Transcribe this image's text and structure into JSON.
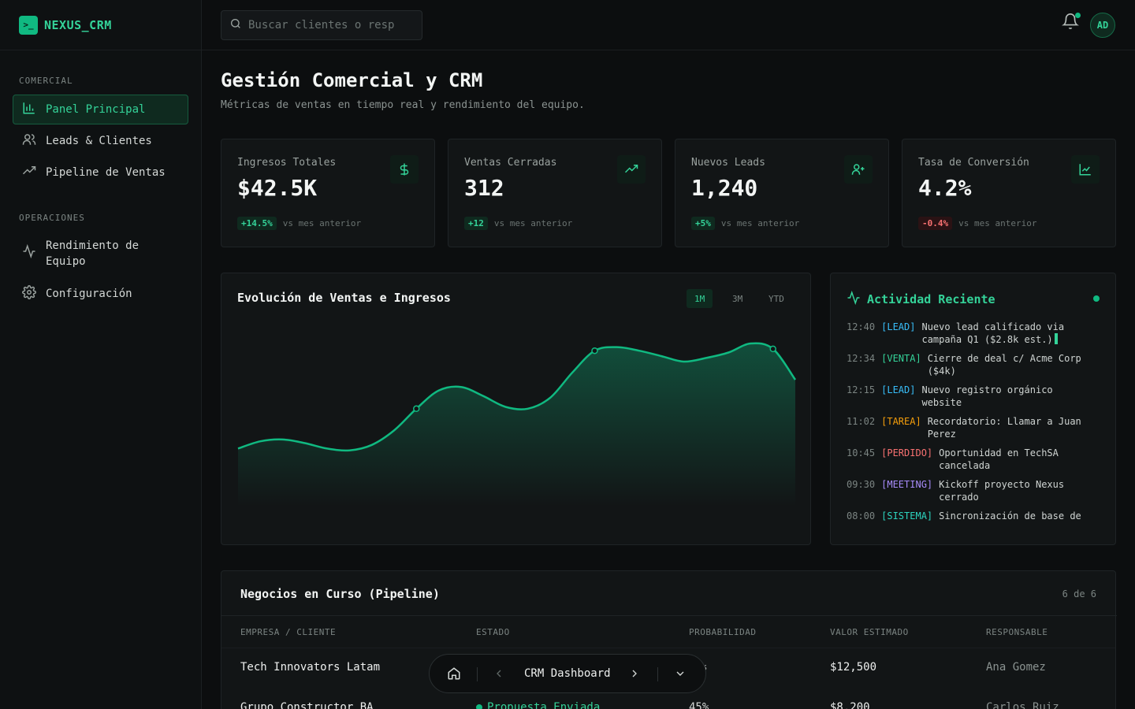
{
  "app": {
    "logo_glyph": ">_",
    "name": "NEXUS_CRM"
  },
  "sidebar": {
    "sections": [
      {
        "heading": "COMERCIAL",
        "items": [
          {
            "label": "Panel Principal",
            "icon": "bar-chart-icon",
            "active": true
          },
          {
            "label": "Leads & Clientes",
            "icon": "users-icon"
          },
          {
            "label": "Pipeline de Ventas",
            "icon": "trending-up-icon"
          }
        ]
      },
      {
        "heading": "OPERACIONES",
        "items": [
          {
            "label": "Rendimiento de Equipo",
            "icon": "activity-icon"
          },
          {
            "label": "Configuración",
            "icon": "gear-icon"
          }
        ]
      }
    ]
  },
  "topbar": {
    "search_placeholder": "Buscar clientes o resp",
    "avatar_initials": "AD"
  },
  "page": {
    "title": "Gestión Comercial y CRM",
    "subtitle": "Métricas de ventas en tiempo real y rendimiento del equipo."
  },
  "kpis": [
    {
      "label": "Ingresos Totales",
      "value": "$42.5K",
      "delta": "+14.5%",
      "trend": "up",
      "caption": "vs mes anterior",
      "icon": "dollar-icon"
    },
    {
      "label": "Ventas Cerradas",
      "value": "312",
      "delta": "+12",
      "trend": "up",
      "caption": "vs mes anterior",
      "icon": "trending-up-icon"
    },
    {
      "label": "Nuevos Leads",
      "value": "1,240",
      "delta": "+5%",
      "trend": "up",
      "caption": "vs mes anterior",
      "icon": "user-plus-icon"
    },
    {
      "label": "Tasa de Conversión",
      "value": "4.2%",
      "delta": "-0.4%",
      "trend": "down",
      "caption": "vs mes anterior",
      "icon": "line-chart-icon"
    }
  ],
  "sales_chart": {
    "title": "Evolución de Ventas e Ingresos",
    "ranges": [
      "1M",
      "3M",
      "YTD"
    ],
    "active_range": "1M",
    "color": "#10b981"
  },
  "chart_data": {
    "type": "area",
    "title": "Evolución de Ventas e Ingresos",
    "xlabel": "",
    "ylabel": "",
    "grid": false,
    "series": [
      {
        "values": [
          32,
          36,
          37,
          35,
          32,
          31,
          34,
          42,
          54,
          64,
          66,
          61,
          55,
          54,
          60,
          74,
          86,
          88,
          86,
          83,
          80,
          82,
          85,
          90,
          87,
          70
        ]
      }
    ],
    "markers": [
      8,
      16,
      24
    ],
    "ylim": [
      0,
      100
    ]
  },
  "activity": {
    "title": "Actividad Reciente",
    "items": [
      {
        "time": "12:40",
        "tag": "[LEAD]",
        "type": "lead",
        "text": "Nuevo lead calificado via campaña Q1 ($2.8k est.)",
        "cursor": true
      },
      {
        "time": "12:34",
        "tag": "[VENTA]",
        "type": "venta",
        "text": "Cierre de deal c/ Acme Corp ($4k)"
      },
      {
        "time": "12:15",
        "tag": "[LEAD]",
        "type": "lead",
        "text": "Nuevo registro orgánico website"
      },
      {
        "time": "11:02",
        "tag": "[TAREA]",
        "type": "tarea",
        "text": "Recordatorio: Llamar a Juan Perez"
      },
      {
        "time": "10:45",
        "tag": "[PERDIDO]",
        "type": "perdido",
        "text": "Oportunidad en TechSA cancelada"
      },
      {
        "time": "09:30",
        "tag": "[MEETING]",
        "type": "meeting",
        "text": "Kickoff proyecto Nexus cerrado"
      },
      {
        "time": "08:00",
        "tag": "[SISTEMA]",
        "type": "sistema",
        "text": "Sincronización de base de"
      }
    ]
  },
  "pipeline": {
    "title": "Negocios en Curso (Pipeline)",
    "count_label": "6 de 6",
    "columns": [
      "EMPRESA / CLIENTE",
      "ESTADO",
      "PROBABILIDAD",
      "VALOR ESTIMADO",
      "RESPONSABLE"
    ],
    "rows": [
      {
        "company": "Tech Innovators Latam",
        "status": "",
        "probability": "%",
        "value": "$12,500",
        "owner": "Ana Gomez"
      },
      {
        "company": "Grupo Constructor BA",
        "status": "Propuesta Enviada",
        "probability": "45%",
        "value": "$8,200",
        "owner": "Carlos Ruiz"
      }
    ]
  },
  "bottom_bar": {
    "label": "CRM Dashboard"
  }
}
